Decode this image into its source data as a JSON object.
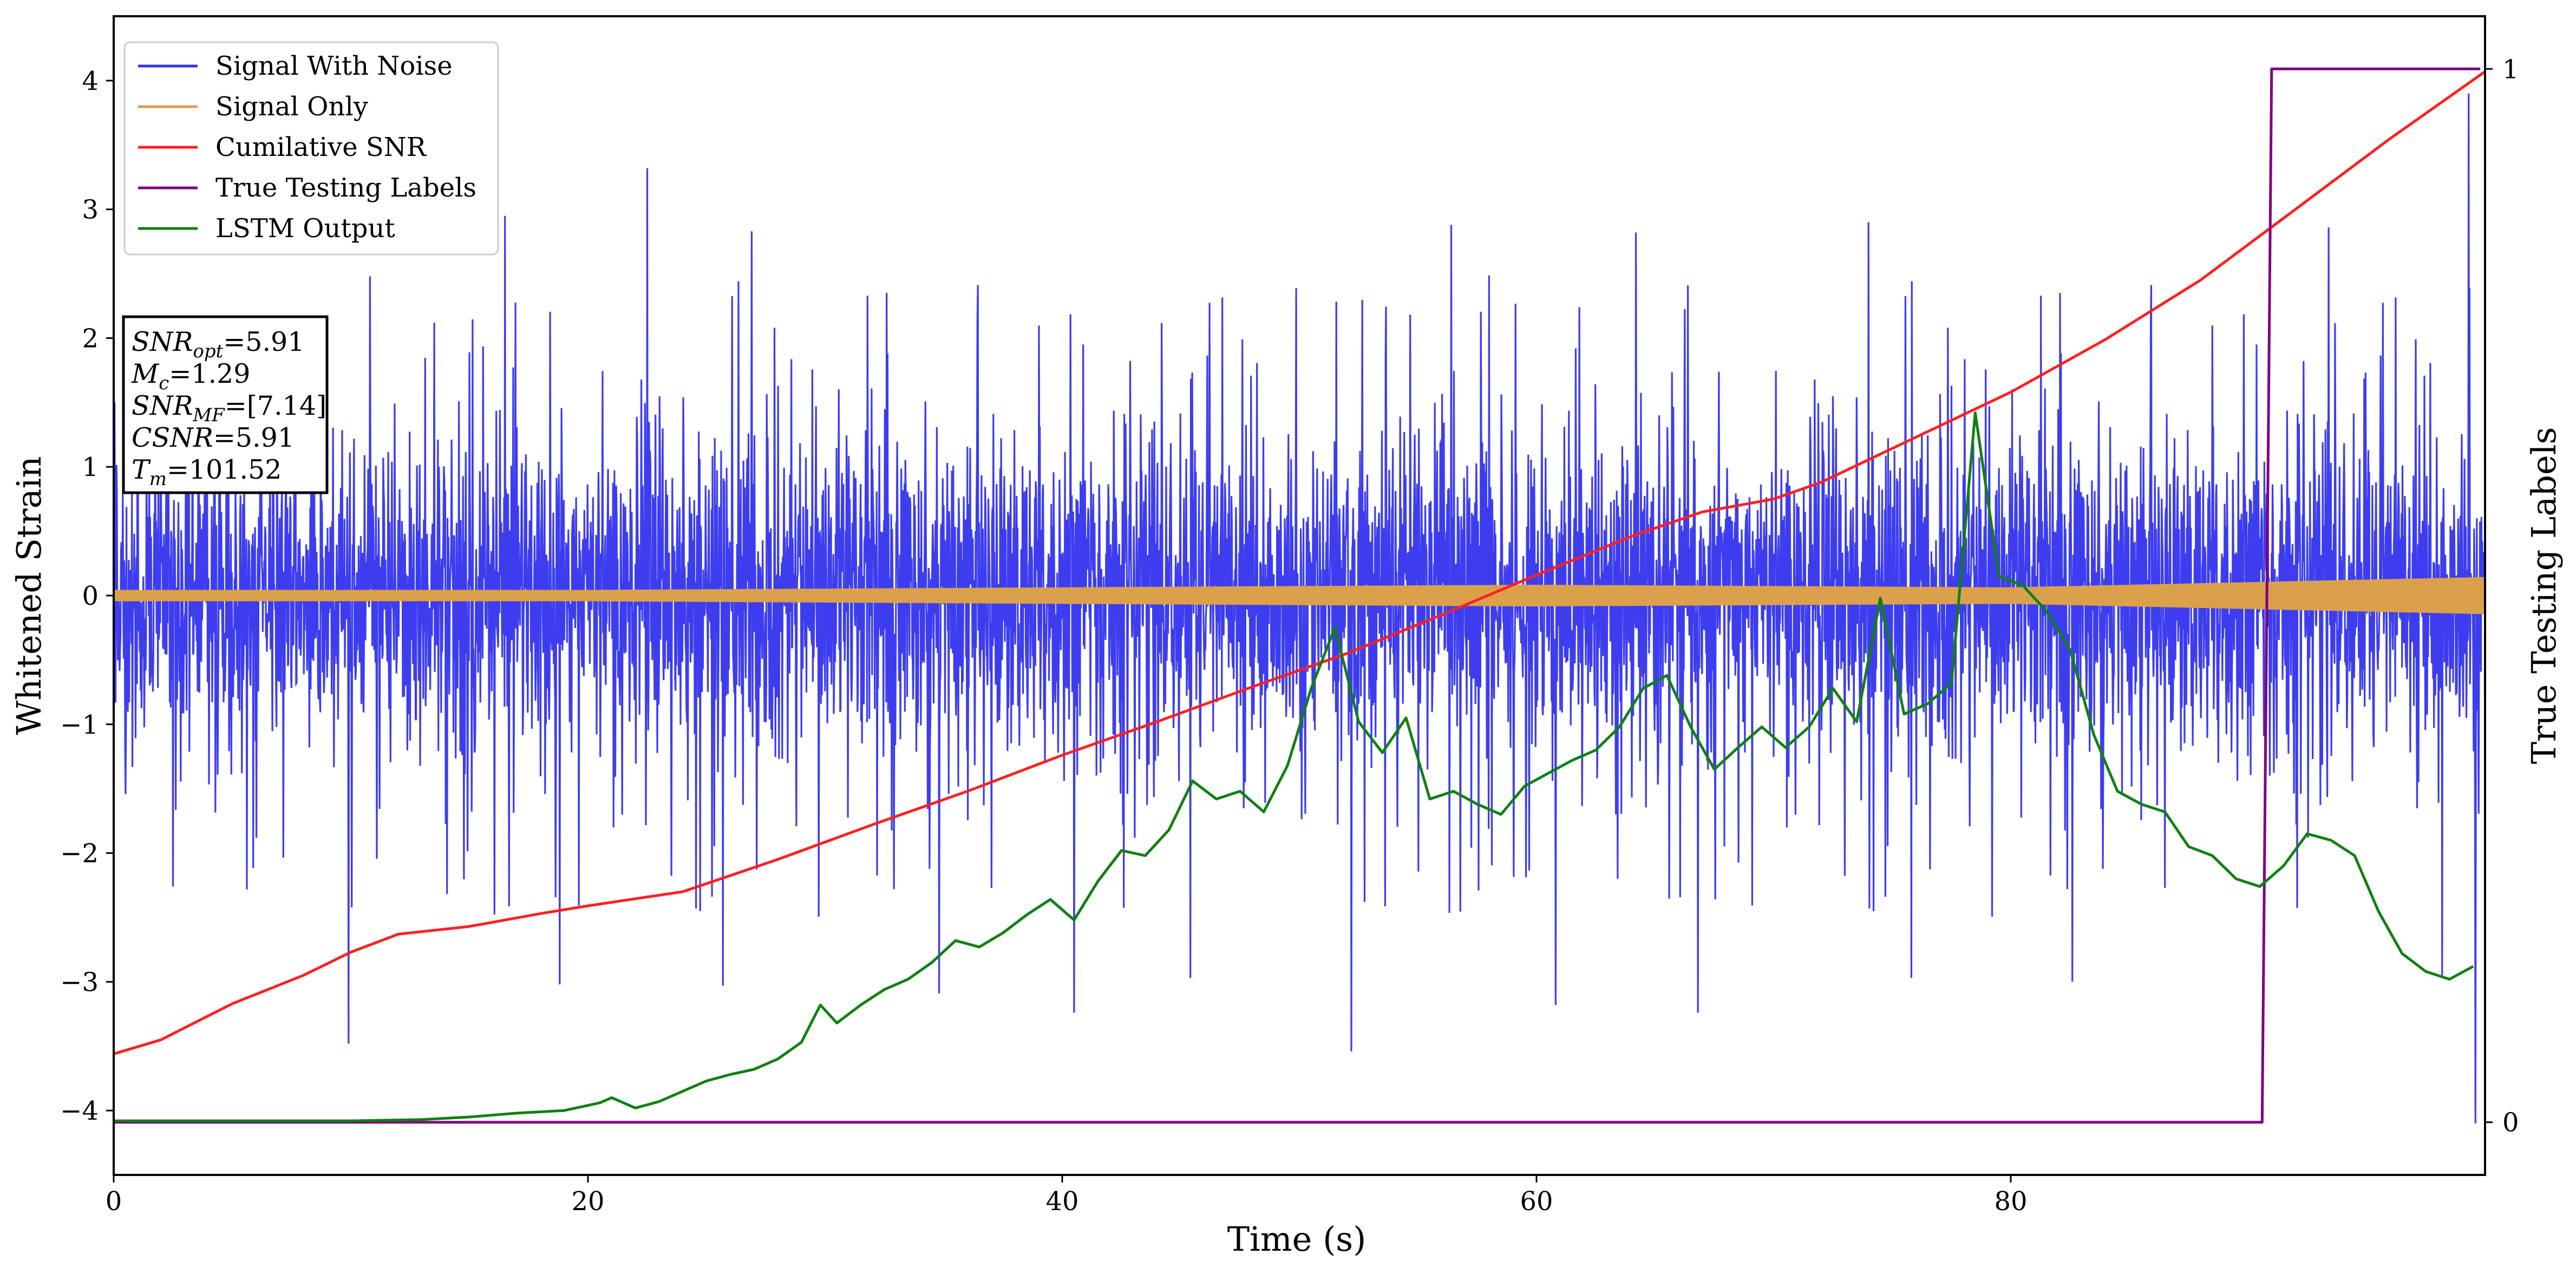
{
  "chart_data": {
    "type": "line",
    "xlabel": "Time (s)",
    "ylabel": "Whitened Strain",
    "y2label": "True Testing Labels",
    "xlim": [
      0,
      100
    ],
    "ylim": [
      -4.5,
      4.5
    ],
    "y2lim": [
      -0.05,
      1.05
    ],
    "x_ticks": [
      0,
      20,
      40,
      60,
      80
    ],
    "y_ticks": [
      -4,
      -3,
      -2,
      -1,
      0,
      1,
      2,
      3,
      4
    ],
    "y2_ticks": [
      0,
      1
    ],
    "grid": false,
    "legend_position": "top-left",
    "colors": {
      "signal_with_noise": "#3333ee",
      "signal_only": "#daa14a",
      "cumulative_snr": "#ff1f1f",
      "true_labels": "#800080",
      "lstm_output": "#108010"
    },
    "series": [
      {
        "key": "signal_with_noise",
        "name": "Signal With Noise",
        "description_of_values": "dense white-noise strain, roughly between -2.5 and 3.4 with outlier spikes",
        "spikes": [
          [
            9.9,
            -3.48
          ],
          [
            10.8,
            2.48
          ],
          [
            16.5,
            2.95
          ],
          [
            18.8,
            -3.02
          ],
          [
            22.5,
            3.32
          ],
          [
            25.7,
            -3.03
          ],
          [
            26.9,
            2.83
          ],
          [
            34.8,
            -3.09
          ],
          [
            40.5,
            -3.24
          ],
          [
            45.4,
            -2.97
          ],
          [
            52.2,
            -3.54
          ],
          [
            56.4,
            2.88
          ],
          [
            60.8,
            -3.18
          ],
          [
            64.2,
            2.82
          ],
          [
            66.8,
            -3.24
          ],
          [
            74.0,
            2.9
          ],
          [
            75.8,
            -2.97
          ],
          [
            82.6,
            -3.0
          ],
          [
            93.4,
            2.86
          ],
          [
            98.2,
            -2.97
          ],
          [
            99.3,
            3.9
          ],
          [
            99.6,
            -4.1
          ]
        ]
      },
      {
        "key": "signal_only",
        "name": "Signal Only",
        "description_of_values": "small-amplitude chirp envelope growing from ~0.03 to ~0.13",
        "envelope_x": [
          0,
          20,
          40,
          60,
          70,
          80,
          90,
          100
        ],
        "envelope_y": [
          0.04,
          0.04,
          0.06,
          0.08,
          0.07,
          0.06,
          0.1,
          0.14
        ]
      },
      {
        "key": "cumulative_snr",
        "name": "Cumilative SNR",
        "x": [
          0,
          2,
          5,
          8,
          10,
          12,
          15,
          18,
          20,
          24,
          28,
          32,
          36,
          40,
          44,
          48,
          52,
          56,
          60,
          64,
          67,
          70,
          72,
          76,
          80,
          84,
          88,
          92,
          96,
          100
        ],
        "y": [
          -3.56,
          -3.45,
          -3.17,
          -2.95,
          -2.77,
          -2.63,
          -2.57,
          -2.47,
          -2.41,
          -2.3,
          -2.05,
          -1.78,
          -1.52,
          -1.24,
          -0.98,
          -0.71,
          -0.45,
          -0.15,
          0.16,
          0.46,
          0.65,
          0.75,
          0.88,
          1.23,
          1.58,
          1.99,
          2.45,
          3.0,
          3.55,
          4.07
        ]
      },
      {
        "key": "true_labels",
        "name": "True Testing Labels",
        "axis": "right",
        "x": [
          0,
          90.6,
          91.0,
          99.8
        ],
        "y": [
          0,
          0,
          1,
          1
        ]
      },
      {
        "key": "lstm_output",
        "name": "LSTM Output",
        "x": [
          0,
          10,
          13,
          15,
          17,
          19,
          20.5,
          21,
          22,
          23,
          24,
          25,
          26,
          27,
          28,
          29,
          29.8,
          30.5,
          31.5,
          32.5,
          33.5,
          34.5,
          35.5,
          36.5,
          37.5,
          38.5,
          39.5,
          40.5,
          41.5,
          42.5,
          43.5,
          44.5,
          45.5,
          46.5,
          47.5,
          48.5,
          49.5,
          50.5,
          51.5,
          52.5,
          53.5,
          54.5,
          55.5,
          56.5,
          57.5,
          58.5,
          59.5,
          60.5,
          61.5,
          62.5,
          63.5,
          64.5,
          65.5,
          66.5,
          67.5,
          68.5,
          69.5,
          70.5,
          71.5,
          72.5,
          73.5,
          74.5,
          75.5,
          76.5,
          77.5,
          78.5,
          79.5,
          80.5,
          81.5,
          82.5,
          83.5,
          84.5,
          85.5,
          86.5,
          87.5,
          88.5,
          89.5,
          90.5,
          91.5,
          92.5,
          93.5,
          94.5,
          95.5,
          96.5,
          97.5,
          98.5,
          99.5
        ],
        "y": [
          -4.08,
          -4.08,
          -4.07,
          -4.05,
          -4.02,
          -4.0,
          -3.94,
          -3.9,
          -3.98,
          -3.93,
          -3.85,
          -3.77,
          -3.72,
          -3.68,
          -3.6,
          -3.47,
          -3.18,
          -3.32,
          -3.18,
          -3.06,
          -2.98,
          -2.85,
          -2.68,
          -2.73,
          -2.62,
          -2.48,
          -2.36,
          -2.52,
          -2.22,
          -1.98,
          -2.02,
          -1.82,
          -1.44,
          -1.58,
          -1.52,
          -1.68,
          -1.32,
          -0.72,
          -0.25,
          -0.98,
          -1.22,
          -0.95,
          -1.58,
          -1.52,
          -1.62,
          -1.7,
          -1.48,
          -1.38,
          -1.28,
          -1.2,
          -1.02,
          -0.72,
          -0.62,
          -1.02,
          -1.35,
          -1.18,
          -1.02,
          -1.18,
          -1.02,
          -0.72,
          -0.98,
          -0.02,
          -0.92,
          -0.84,
          -0.68,
          1.42,
          0.15,
          0.08,
          -0.12,
          -0.42,
          -1.08,
          -1.52,
          -1.62,
          -1.68,
          -1.95,
          -2.02,
          -2.2,
          -2.26,
          -2.1,
          -1.85,
          -1.9,
          -2.02,
          -2.45,
          -2.78,
          -2.92,
          -2.98,
          -2.88
        ]
      }
    ],
    "annotation": [
      {
        "main": "SNR",
        "sub": "opt",
        "value": "=5.91"
      },
      {
        "main": "M",
        "sub": "c",
        "value": "=1.29"
      },
      {
        "main": "SNR",
        "sub": "MF",
        "value": "=[7.14]"
      },
      {
        "main": "CSNR",
        "sub": "",
        "value": "=5.91"
      },
      {
        "main": "T",
        "sub": "m",
        "value": "=101.52"
      }
    ]
  }
}
